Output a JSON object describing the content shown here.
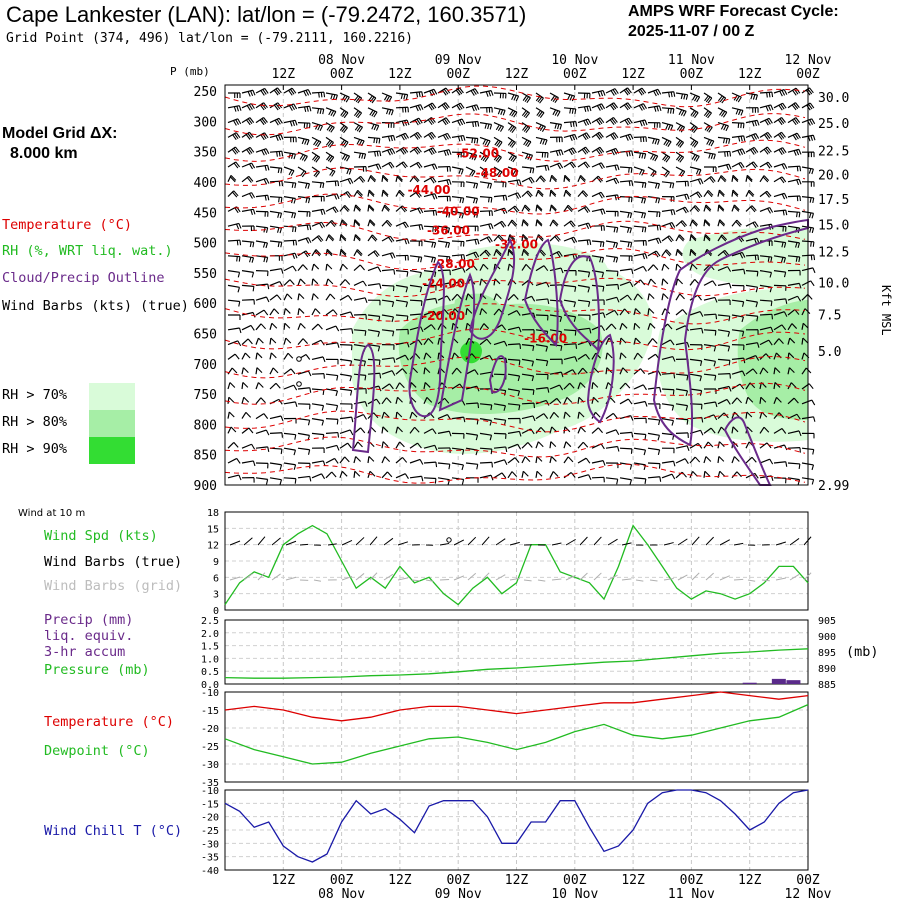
{
  "header": {
    "title": "Cape Lankester (LAN):  lat/lon = (-79.2472, 160.3571)",
    "subtitle": "Grid Point (374, 496) lat/lon = (-79.2111, 160.2216)",
    "cycle_line1": "AMPS WRF Forecast Cycle:",
    "cycle_line2": "2025-11-07 / 00  Z"
  },
  "model_grid": {
    "label": "Model Grid ΔX:",
    "value": "8.000 km"
  },
  "legend": {
    "temperature": "Temperature (°C)",
    "rh": "RH (%, WRT liq. wat.)",
    "cloud": "Cloud/Precip Outline",
    "barbs": "Wind Barbs (kts) (true)",
    "rh70": "RH > 70%",
    "rh80": "RH > 80%",
    "rh90": "RH > 90%",
    "rh_colors": [
      "#d9fbd9",
      "#a6eea6",
      "#33dd33"
    ]
  },
  "colors": {
    "temperature": "#dd0000",
    "rh": "#22bb22",
    "cloud": "#6a2a8a",
    "wind_chill": "#1a1aa8",
    "barbs": "#000000",
    "grid_barbs": "#b0b0b0"
  },
  "time_axis": {
    "tick_labels": [
      "12Z",
      "00Z",
      "12Z",
      "00Z",
      "12Z",
      "00Z",
      "12Z",
      "00Z",
      "12Z",
      "00Z"
    ],
    "date_labels": [
      "08 Nov",
      "09 Nov",
      "10 Nov",
      "11 Nov",
      "12 Nov"
    ]
  },
  "chart_data": [
    {
      "type": "heatmap",
      "name": "cross-section",
      "y_label": "P (mb)",
      "y_ticks": [
        250,
        300,
        350,
        400,
        450,
        500,
        550,
        600,
        650,
        700,
        750,
        800,
        850,
        900
      ],
      "ylim": [
        240,
        900
      ],
      "right_axis_label": "Kft MSL",
      "right_ticks": [
        "30.0",
        "25.0",
        "22.5",
        "20.0",
        "17.5",
        "15.0",
        "12.5",
        "10.0",
        "7.5",
        "5.0",
        "2.99"
      ],
      "right_tick_values": [
        30.0,
        25.0,
        22.5,
        20.0,
        17.5,
        15.0,
        12.5,
        10.0,
        7.5,
        5.0,
        2.99
      ],
      "temperature_labels": [
        {
          "text": "-52.00",
          "t": 52,
          "p": 360
        },
        {
          "text": "-48.00",
          "t": 56,
          "p": 392
        },
        {
          "text": "-44.00",
          "t": 42,
          "p": 420
        },
        {
          "text": "-40.00",
          "t": 48,
          "p": 455
        },
        {
          "text": "-36.00",
          "t": 46,
          "p": 487
        },
        {
          "text": "-32.00",
          "t": 60,
          "p": 510
        },
        {
          "text": "-28.00",
          "t": 47,
          "p": 542
        },
        {
          "text": "-24.00",
          "t": 45,
          "p": 574
        },
        {
          "text": "-20.00",
          "t": 45,
          "p": 628
        },
        {
          "text": "-16.00",
          "t": 66,
          "p": 665
        }
      ]
    },
    {
      "type": "line",
      "name": "wind",
      "title": "Wind at 10 m",
      "label_speed": "Wind Spd (kts)",
      "label_barbs": "Wind Barbs (true)",
      "label_barbs_grid": "Wind Barbs (grid)",
      "y_ticks": [
        0,
        3,
        6,
        9,
        12,
        15,
        18
      ],
      "ylim": [
        0,
        18
      ],
      "x": [
        0,
        3,
        6,
        9,
        12,
        15,
        18,
        21,
        24,
        27,
        30,
        33,
        36,
        39,
        42,
        45,
        48,
        51,
        54,
        57,
        60,
        63,
        66,
        69,
        72,
        75,
        78,
        81,
        84,
        87,
        90,
        93,
        96,
        99,
        102,
        105,
        108,
        111,
        114,
        117,
        120
      ],
      "series": [
        {
          "name": "Wind Spd (kts)",
          "values": [
            1,
            5,
            7,
            6,
            12,
            14,
            15.5,
            14,
            9,
            4,
            6,
            4,
            8,
            5,
            6,
            3,
            1,
            4,
            6,
            3,
            5,
            12,
            12,
            7,
            6,
            5,
            2,
            8,
            15.5,
            12,
            8,
            4,
            2,
            3.5,
            3,
            2,
            3,
            5,
            8,
            8,
            5
          ]
        }
      ]
    },
    {
      "type": "line",
      "name": "precip-pressure",
      "label_precip": "Precip (mm)",
      "label_liq": "liq. equiv.",
      "label_accum": "3-hr accum",
      "label_pressure": "Pressure (mb)",
      "y_ticks": [
        "0.0",
        "0.5",
        "1.0",
        "1.5",
        "2.0",
        "2.5"
      ],
      "ylim": [
        0,
        2.5
      ],
      "right_ticks": [
        "885",
        "890",
        "895",
        "900",
        "905"
      ],
      "right_label": "(mb)",
      "right_ylim": [
        885,
        905
      ],
      "x": [
        0,
        6,
        12,
        18,
        24,
        30,
        36,
        42,
        48,
        54,
        60,
        66,
        72,
        78,
        84,
        90,
        96,
        102,
        108,
        114,
        120
      ],
      "series": [
        {
          "name": "Pressure (mb)",
          "values": [
            887,
            886.8,
            886.8,
            887,
            887.2,
            887.6,
            887.8,
            888.2,
            888.8,
            889.6,
            890,
            890.6,
            891.2,
            891.8,
            892.2,
            893,
            893.8,
            894.6,
            895,
            895.6,
            896
          ]
        },
        {
          "name": "Precip (mm)",
          "type": "bar",
          "x": [
            108,
            114,
            117
          ],
          "values": [
            0.05,
            0.2,
            0.15
          ]
        }
      ]
    },
    {
      "type": "line",
      "name": "temperature-dewpoint",
      "label_temp": "Temperature (°C)",
      "label_dew": "Dewpoint (°C)",
      "y_ticks": [
        "-35",
        "-30",
        "-25",
        "-20",
        "-15",
        "-10"
      ],
      "ylim": [
        -35,
        -10
      ],
      "x": [
        0,
        6,
        12,
        18,
        24,
        30,
        36,
        42,
        48,
        54,
        60,
        66,
        72,
        78,
        84,
        90,
        96,
        102,
        108,
        114,
        120
      ],
      "series": [
        {
          "name": "Temperature (°C)",
          "values": [
            -15,
            -14,
            -15,
            -17,
            -18,
            -17,
            -15,
            -14,
            -14,
            -15,
            -16,
            -15,
            -14,
            -13,
            -13,
            -12,
            -11,
            -10,
            -11,
            -12,
            -11
          ]
        },
        {
          "name": "Dewpoint (°C)",
          "values": [
            -23,
            -26,
            -28,
            -30,
            -29.5,
            -27,
            -25,
            -23,
            -22.5,
            -24,
            -26,
            -24,
            -21,
            -19,
            -22,
            -23,
            -22,
            -20,
            -18,
            -17,
            -13.5
          ]
        }
      ]
    },
    {
      "type": "line",
      "name": "wind-chill",
      "label": "Wind Chill T (°C)",
      "y_ticks": [
        "-40",
        "-35",
        "-30",
        "-25",
        "-20",
        "-15",
        "-10"
      ],
      "ylim": [
        -40,
        -10
      ],
      "x": [
        0,
        3,
        6,
        9,
        12,
        15,
        18,
        21,
        24,
        27,
        30,
        33,
        36,
        39,
        42,
        45,
        48,
        51,
        54,
        57,
        60,
        63,
        66,
        69,
        72,
        75,
        78,
        81,
        84,
        87,
        90,
        93,
        96,
        99,
        102,
        105,
        108,
        111,
        114,
        117,
        120
      ],
      "series": [
        {
          "name": "Wind Chill T (°C)",
          "values": [
            -15,
            -18,
            -24,
            -22,
            -31,
            -35,
            -37,
            -34,
            -22,
            -14,
            -19,
            -17,
            -21,
            -26,
            -16,
            -14,
            -14,
            -14,
            -20,
            -30,
            -30,
            -22,
            -22,
            -14,
            -14,
            -24,
            -33,
            -31,
            -25,
            -15,
            -11,
            -10,
            -10,
            -11,
            -14,
            -19,
            -25,
            -22,
            -15,
            -11,
            -10
          ]
        }
      ]
    }
  ]
}
